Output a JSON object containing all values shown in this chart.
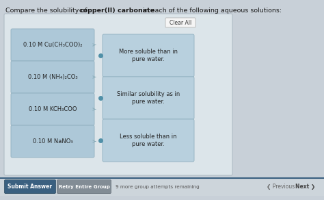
{
  "bg_outer": "#c8d0d8",
  "bg_panel": "#dce5ea",
  "bg_panel_border": "#b0bcc5",
  "box_left_bg": "#adc8d8",
  "box_left_border": "#90b0c0",
  "box_right_bg": "#b8d0de",
  "box_right_border": "#90b0c0",
  "clear_all_bg": "#f5f5f5",
  "clear_all_border": "#aaaaaa",
  "title_prefix": "Compare the solubility of ",
  "title_bold": "copper(II) carbonate",
  "title_suffix": " in each of the following aqueous solutions:",
  "left_items": [
    "0.10 M Cu(CH₃COO)₂",
    "0.10 M (NH₄)₂CO₃",
    "0.10 M KCH₃COO",
    "0.10 M NaNO₃"
  ],
  "right_items": [
    "More soluble than in\npure water.",
    "Similar solubility as in\npure water.",
    "Less soluble than in\npure water."
  ],
  "submit_bg": "#3a6080",
  "submit_border": "#2a4a60",
  "retry_bg": "#828c95",
  "retry_border": "#626c75",
  "submit_text": "Submit Answer",
  "retry_text": "Retry Entire Group",
  "remaining_text": "9 more group attempts remaining",
  "prev_text": "Previous",
  "next_text": "Next",
  "dot_color": "#5090a8",
  "arrow_color": "#8aacb8"
}
